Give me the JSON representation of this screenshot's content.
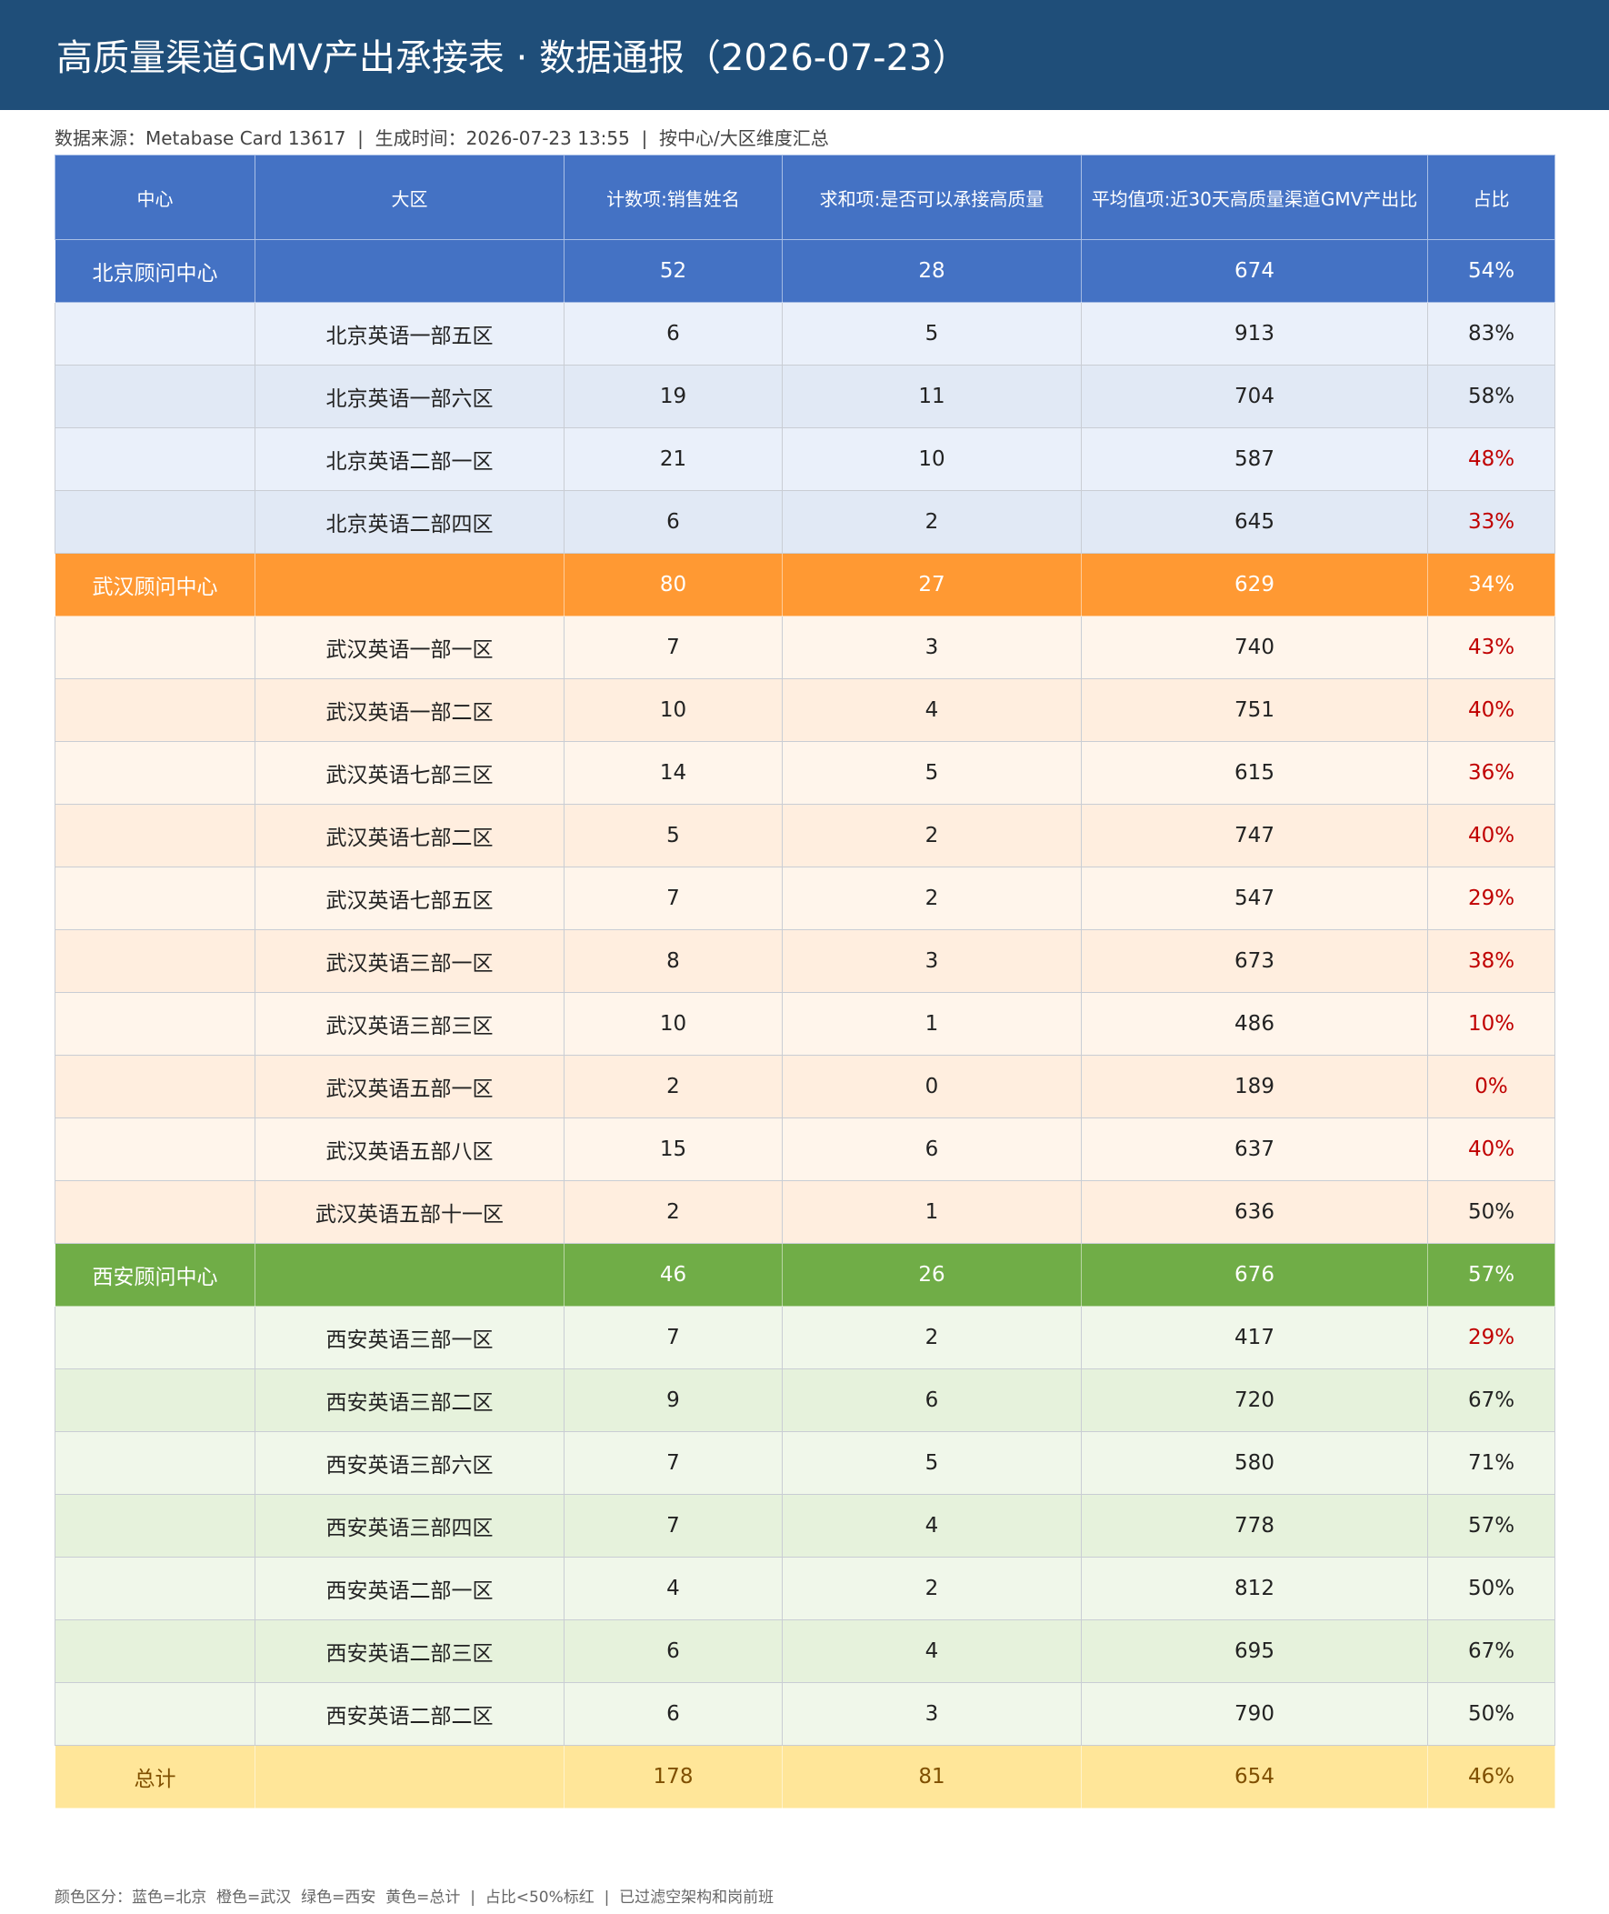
{
  "header": {
    "title": "高质量渠道GMV产出承接表 · 数据通报（2026-07-23）",
    "subtitle": "数据来源：Metabase Card 13617  |  生成时间：2026-07-23 13:55  |  按中心/大区维度汇总"
  },
  "groups": {
    "beijing": {
      "head": "#4472c4",
      "rows": [
        "#eaf0fa",
        "#e1e9f5"
      ],
      "text": "#ffffff"
    },
    "wuhan": {
      "head": "#ff9933",
      "rows": [
        "#fff5eb",
        "#ffeedf"
      ],
      "text": "#ffffff"
    },
    "xian": {
      "head": "#70ad47",
      "rows": [
        "#f0f7ea",
        "#e6f2dc"
      ],
      "text": "#ffffff"
    },
    "total": {
      "head": "#ffe699",
      "rows": [
        "#ffe699"
      ],
      "text": "#7f4f00"
    }
  },
  "alert_color": "#c00000",
  "table": {
    "columns": [
      "中心",
      "大区",
      "计数项:销售姓名",
      "求和项:是否可以承接高质量",
      "平均值项:近30天高质量渠道GMV产出比",
      "占比"
    ],
    "rows": [
      {
        "group": "beijing",
        "level": "center",
        "cells": [
          "北京顾问中心",
          null,
          52,
          28,
          674,
          "54%"
        ]
      },
      {
        "group": "beijing",
        "level": "sub",
        "cells": [
          null,
          "北京英语一部五区",
          6,
          5,
          913,
          "83%"
        ]
      },
      {
        "group": "beijing",
        "level": "sub",
        "cells": [
          null,
          "北京英语一部六区",
          19,
          11,
          704,
          "58%"
        ]
      },
      {
        "group": "beijing",
        "level": "sub",
        "alert": true,
        "cells": [
          null,
          "北京英语二部一区",
          21,
          10,
          587,
          "48%"
        ]
      },
      {
        "group": "beijing",
        "level": "sub",
        "alert": true,
        "cells": [
          null,
          "北京英语二部四区",
          6,
          2,
          645,
          "33%"
        ]
      },
      {
        "group": "wuhan",
        "level": "center",
        "cells": [
          "武汉顾问中心",
          null,
          80,
          27,
          629,
          "34%"
        ]
      },
      {
        "group": "wuhan",
        "level": "sub",
        "alert": true,
        "cells": [
          null,
          "武汉英语一部一区",
          7,
          3,
          740,
          "43%"
        ]
      },
      {
        "group": "wuhan",
        "level": "sub",
        "alert": true,
        "cells": [
          null,
          "武汉英语一部二区",
          10,
          4,
          751,
          "40%"
        ]
      },
      {
        "group": "wuhan",
        "level": "sub",
        "alert": true,
        "cells": [
          null,
          "武汉英语七部三区",
          14,
          5,
          615,
          "36%"
        ]
      },
      {
        "group": "wuhan",
        "level": "sub",
        "alert": true,
        "cells": [
          null,
          "武汉英语七部二区",
          5,
          2,
          747,
          "40%"
        ]
      },
      {
        "group": "wuhan",
        "level": "sub",
        "alert": true,
        "cells": [
          null,
          "武汉英语七部五区",
          7,
          2,
          547,
          "29%"
        ]
      },
      {
        "group": "wuhan",
        "level": "sub",
        "alert": true,
        "cells": [
          null,
          "武汉英语三部一区",
          8,
          3,
          673,
          "38%"
        ]
      },
      {
        "group": "wuhan",
        "level": "sub",
        "alert": true,
        "cells": [
          null,
          "武汉英语三部三区",
          10,
          1,
          486,
          "10%"
        ]
      },
      {
        "group": "wuhan",
        "level": "sub",
        "alert": true,
        "cells": [
          null,
          "武汉英语五部一区",
          2,
          0,
          189,
          "0%"
        ]
      },
      {
        "group": "wuhan",
        "level": "sub",
        "alert": true,
        "cells": [
          null,
          "武汉英语五部八区",
          15,
          6,
          637,
          "40%"
        ]
      },
      {
        "group": "wuhan",
        "level": "sub",
        "cells": [
          null,
          "武汉英语五部十一区",
          2,
          1,
          636,
          "50%"
        ]
      },
      {
        "group": "xian",
        "level": "center",
        "cells": [
          "西安顾问中心",
          null,
          46,
          26,
          676,
          "57%"
        ]
      },
      {
        "group": "xian",
        "level": "sub",
        "alert": true,
        "cells": [
          null,
          "西安英语三部一区",
          7,
          2,
          417,
          "29%"
        ]
      },
      {
        "group": "xian",
        "level": "sub",
        "cells": [
          null,
          "西安英语三部二区",
          9,
          6,
          720,
          "67%"
        ]
      },
      {
        "group": "xian",
        "level": "sub",
        "cells": [
          null,
          "西安英语三部六区",
          7,
          5,
          580,
          "71%"
        ]
      },
      {
        "group": "xian",
        "level": "sub",
        "cells": [
          null,
          "西安英语三部四区",
          7,
          4,
          778,
          "57%"
        ]
      },
      {
        "group": "xian",
        "level": "sub",
        "cells": [
          null,
          "西安英语二部一区",
          4,
          2,
          812,
          "50%"
        ]
      },
      {
        "group": "xian",
        "level": "sub",
        "cells": [
          null,
          "西安英语二部三区",
          6,
          4,
          695,
          "67%"
        ]
      },
      {
        "group": "xian",
        "level": "sub",
        "cells": [
          null,
          "西安英语二部二区",
          6,
          3,
          790,
          "50%"
        ]
      },
      {
        "group": "total",
        "level": "total",
        "cells": [
          "总计",
          null,
          178,
          81,
          654,
          "46%"
        ]
      }
    ]
  },
  "footer": "颜色区分：蓝色=北京  橙色=武汉  绿色=西安  黄色=总计  |  占比<50%标红  |  已过滤空架构和岗前班"
}
